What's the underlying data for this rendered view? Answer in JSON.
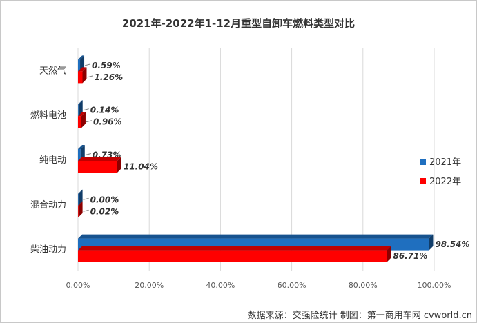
{
  "chart_data": {
    "type": "bar",
    "orientation": "horizontal",
    "title": "2021年-2022年1-12月重型自卸车燃料类型对比",
    "categories": [
      "天然气",
      "燃料电池",
      "纯电动",
      "混合动力",
      "柴油动力"
    ],
    "series": [
      {
        "name": "2021年",
        "color": "#1f6fbf",
        "values": [
          0.59,
          0.14,
          0.73,
          0.0,
          98.54
        ],
        "labels": [
          "0.59%",
          "0.14%",
          "0.73%",
          "0.00%",
          "98.54%"
        ]
      },
      {
        "name": "2022年",
        "color": "#ff0000",
        "values": [
          1.26,
          0.96,
          11.04,
          0.02,
          86.71
        ],
        "labels": [
          "1.26%",
          "0.96%",
          "11.04%",
          "0.02%",
          "86.71%"
        ]
      }
    ],
    "xlim": [
      0,
      100
    ],
    "xticks": [
      "0.00%",
      "20.00%",
      "40.00%",
      "60.00%",
      "80.00%",
      "100.00%"
    ],
    "grid": true,
    "legend_position": "right"
  },
  "footer": "数据来源：交强险统计    制图：第一商用车网 cvworld.cn"
}
